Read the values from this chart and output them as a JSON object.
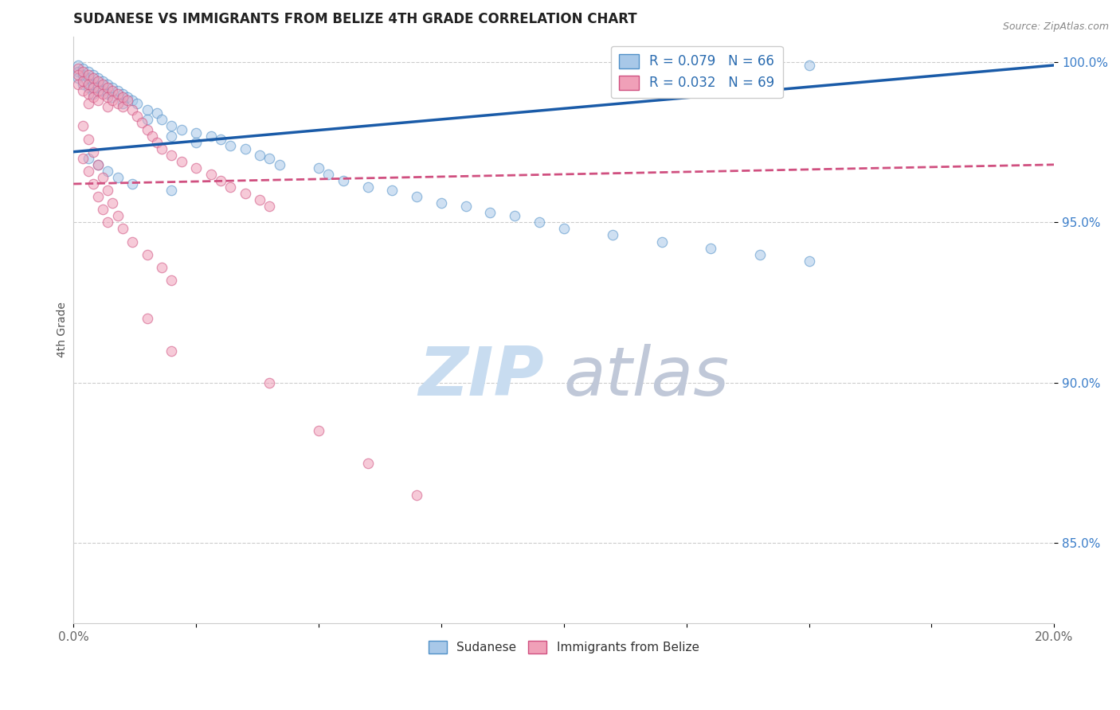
{
  "title": "SUDANESE VS IMMIGRANTS FROM BELIZE 4TH GRADE CORRELATION CHART",
  "source_text": "Source: ZipAtlas.com",
  "ylabel": "4th Grade",
  "xlim": [
    0.0,
    0.2
  ],
  "ylim": [
    0.825,
    1.008
  ],
  "xticks": [
    0.0,
    0.025,
    0.05,
    0.075,
    0.1,
    0.125,
    0.15,
    0.175,
    0.2
  ],
  "xticklabels_show": [
    "0.0%",
    "",
    "",
    "",
    "",
    "",
    "",
    "",
    "20.0%"
  ],
  "yticks": [
    0.85,
    0.9,
    0.95,
    1.0
  ],
  "yticklabels": [
    "85.0%",
    "90.0%",
    "95.0%",
    "100.0%"
  ],
  "series": [
    {
      "name": "Sudanese",
      "R": 0.079,
      "N": 66,
      "color": "#A8C8E8",
      "edge_color": "#5090C8",
      "x": [
        0.001,
        0.001,
        0.001,
        0.002,
        0.002,
        0.002,
        0.003,
        0.003,
        0.003,
        0.004,
        0.004,
        0.004,
        0.005,
        0.005,
        0.006,
        0.006,
        0.007,
        0.007,
        0.008,
        0.008,
        0.009,
        0.01,
        0.01,
        0.011,
        0.012,
        0.013,
        0.015,
        0.015,
        0.017,
        0.018,
        0.02,
        0.02,
        0.022,
        0.025,
        0.025,
        0.028,
        0.03,
        0.032,
        0.035,
        0.038,
        0.04,
        0.042,
        0.05,
        0.052,
        0.055,
        0.06,
        0.065,
        0.07,
        0.075,
        0.08,
        0.085,
        0.09,
        0.095,
        0.1,
        0.11,
        0.12,
        0.13,
        0.14,
        0.15,
        0.003,
        0.005,
        0.007,
        0.009,
        0.012,
        0.02,
        0.15
      ],
      "y": [
        0.999,
        0.997,
        0.995,
        0.998,
        0.996,
        0.993,
        0.997,
        0.995,
        0.992,
        0.996,
        0.993,
        0.99,
        0.995,
        0.992,
        0.994,
        0.991,
        0.993,
        0.99,
        0.992,
        0.989,
        0.991,
        0.99,
        0.987,
        0.989,
        0.988,
        0.987,
        0.985,
        0.982,
        0.984,
        0.982,
        0.98,
        0.977,
        0.979,
        0.978,
        0.975,
        0.977,
        0.976,
        0.974,
        0.973,
        0.971,
        0.97,
        0.968,
        0.967,
        0.965,
        0.963,
        0.961,
        0.96,
        0.958,
        0.956,
        0.955,
        0.953,
        0.952,
        0.95,
        0.948,
        0.946,
        0.944,
        0.942,
        0.94,
        0.938,
        0.97,
        0.968,
        0.966,
        0.964,
        0.962,
        0.96,
        0.999
      ],
      "trend_x": [
        0.0,
        0.2
      ],
      "trend_y": [
        0.972,
        0.999
      ],
      "trend_style": "solid",
      "trend_color": "#1A5BA8",
      "trend_lw": 2.5
    },
    {
      "name": "Immigrants from Belize",
      "R": 0.032,
      "N": 69,
      "color": "#F0A0B8",
      "edge_color": "#D05080",
      "x": [
        0.001,
        0.001,
        0.001,
        0.002,
        0.002,
        0.002,
        0.003,
        0.003,
        0.003,
        0.003,
        0.004,
        0.004,
        0.004,
        0.005,
        0.005,
        0.005,
        0.006,
        0.006,
        0.007,
        0.007,
        0.007,
        0.008,
        0.008,
        0.009,
        0.009,
        0.01,
        0.01,
        0.011,
        0.012,
        0.013,
        0.014,
        0.015,
        0.016,
        0.017,
        0.018,
        0.02,
        0.022,
        0.025,
        0.028,
        0.03,
        0.032,
        0.035,
        0.038,
        0.04,
        0.002,
        0.003,
        0.004,
        0.005,
        0.006,
        0.007,
        0.008,
        0.009,
        0.01,
        0.012,
        0.015,
        0.018,
        0.02,
        0.002,
        0.003,
        0.004,
        0.005,
        0.006,
        0.007,
        0.015,
        0.02,
        0.04,
        0.05,
        0.06,
        0.07
      ],
      "y": [
        0.998,
        0.996,
        0.993,
        0.997,
        0.994,
        0.991,
        0.996,
        0.993,
        0.99,
        0.987,
        0.995,
        0.992,
        0.989,
        0.994,
        0.991,
        0.988,
        0.993,
        0.99,
        0.992,
        0.989,
        0.986,
        0.991,
        0.988,
        0.99,
        0.987,
        0.989,
        0.986,
        0.988,
        0.985,
        0.983,
        0.981,
        0.979,
        0.977,
        0.975,
        0.973,
        0.971,
        0.969,
        0.967,
        0.965,
        0.963,
        0.961,
        0.959,
        0.957,
        0.955,
        0.98,
        0.976,
        0.972,
        0.968,
        0.964,
        0.96,
        0.956,
        0.952,
        0.948,
        0.944,
        0.94,
        0.936,
        0.932,
        0.97,
        0.966,
        0.962,
        0.958,
        0.954,
        0.95,
        0.92,
        0.91,
        0.9,
        0.885,
        0.875,
        0.865
      ],
      "trend_x": [
        0.0,
        0.2
      ],
      "trend_y": [
        0.962,
        0.968
      ],
      "trend_style": "dashed",
      "trend_color": "#D05080",
      "trend_lw": 2.0
    }
  ],
  "legend_entries": [
    {
      "label": "R = 0.079   N = 66",
      "color": "#A8C8E8",
      "edge": "#5090C8"
    },
    {
      "label": "R = 0.032   N = 69",
      "color": "#F0A0B8",
      "edge": "#D05080"
    }
  ],
  "bottom_legend": [
    {
      "label": "Sudanese",
      "color": "#A8C8E8",
      "edge": "#5090C8"
    },
    {
      "label": "Immigrants from Belize",
      "color": "#F0A0B8",
      "edge": "#D05080"
    }
  ],
  "watermark_zip": "ZIP",
  "watermark_atlas": "atlas",
  "watermark_color_zip": "#C8DCF0",
  "watermark_color_atlas": "#C0C8D8",
  "background_color": "#FFFFFF",
  "grid_color": "#CCCCCC",
  "title_color": "#222222",
  "axis_label_color": "#555555",
  "tick_color_x": "#666666",
  "tick_color_y": "#3A7DC9",
  "source_color": "#888888",
  "marker_size": 80,
  "marker_alpha": 0.55
}
